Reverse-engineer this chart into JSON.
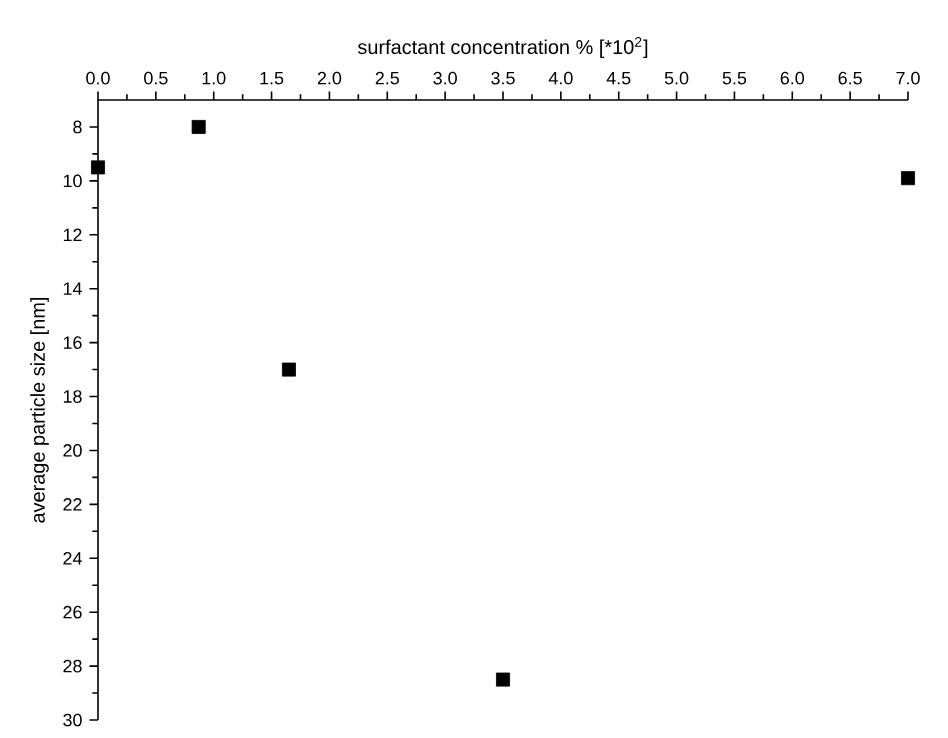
{
  "chart_data": {
    "type": "scatter",
    "xlabel": "surfactant concentration % [*10$^{2}$]",
    "ylabel": "average particle size [nm]",
    "x": [
      0.0,
      0.87,
      1.65,
      3.5,
      7.0
    ],
    "values": [
      9.5,
      8.0,
      17.0,
      28.5,
      9.9
    ],
    "color": "#000000",
    "marker": "square",
    "xlim": [
      0,
      7
    ],
    "ylim": [
      30,
      7
    ],
    "xticks": [
      {
        "value": 0,
        "label": "0.0"
      },
      {
        "value": 0.5,
        "label": "0.5"
      },
      {
        "value": 1,
        "label": "1.0"
      },
      {
        "value": 1.5,
        "label": "1.5"
      },
      {
        "value": 2,
        "label": "2.0"
      },
      {
        "value": 2.5,
        "label": "2.5"
      },
      {
        "value": 3,
        "label": "3.0"
      },
      {
        "value": 3.5,
        "label": "3.5"
      },
      {
        "value": 4,
        "label": "4.0"
      },
      {
        "value": 4.5,
        "label": "4.5"
      },
      {
        "value": 5,
        "label": "5.0"
      },
      {
        "value": 5.5,
        "label": "5.5"
      },
      {
        "value": 6,
        "label": "6.0"
      },
      {
        "value": 6.5,
        "label": "6.5"
      },
      {
        "value": 7,
        "label": "7.0"
      }
    ],
    "yticks": [
      8,
      10,
      12,
      14,
      16,
      18,
      20,
      22,
      24,
      26,
      28,
      30
    ],
    "grid": false
  }
}
